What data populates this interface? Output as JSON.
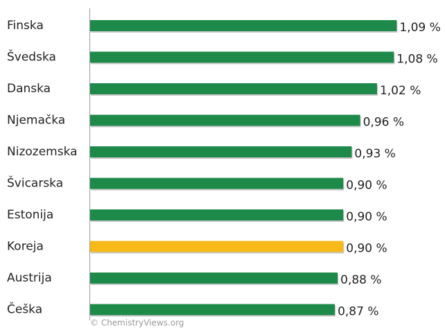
{
  "chart_data": {
    "type": "bar",
    "orientation": "horizontal",
    "categories": [
      "Finska",
      "Švedska",
      "Danska",
      "Njemačka",
      "Nizozemska",
      "Švicarska",
      "Estonija",
      "Koreja",
      "Austrija",
      "Češka"
    ],
    "values": [
      1.09,
      1.08,
      1.02,
      0.96,
      0.93,
      0.9,
      0.9,
      0.9,
      0.88,
      0.87
    ],
    "value_labels": [
      "1,09 %",
      "1,08 %",
      "1,02 %",
      "0,96 %",
      "0,93 %",
      "0,90 %",
      "0,90 %",
      "0,90 %",
      "0,88 %",
      "0,87 %"
    ],
    "colors": [
      "#1e8a4a",
      "#1e8a4a",
      "#1e8a4a",
      "#1e8a4a",
      "#1e8a4a",
      "#1e8a4a",
      "#1e8a4a",
      "#f6b918",
      "#1e8a4a",
      "#1e8a4a"
    ],
    "xlim": [
      0,
      1.2
    ],
    "watermark": "© ChemistryViews.org"
  }
}
